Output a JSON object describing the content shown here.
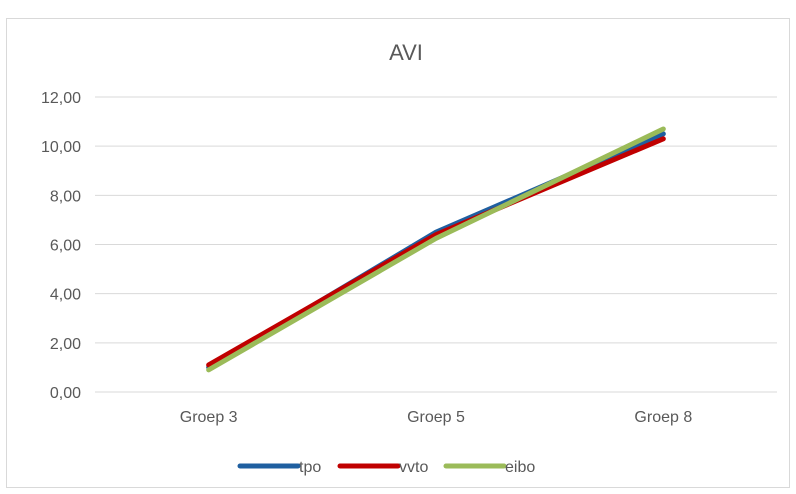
{
  "chart_data": {
    "type": "line",
    "title": "AVI",
    "xlabel": "",
    "ylabel": "",
    "categories": [
      "Groep 3",
      "Groep 5",
      "Groep 8"
    ],
    "ylim": [
      0,
      12
    ],
    "y_ticks": [
      "0,00",
      "2,00",
      "4,00",
      "6,00",
      "8,00",
      "10,00",
      "12,00"
    ],
    "grid": true,
    "legend_position": "bottom",
    "series": [
      {
        "name": "tpo",
        "color": "#1f5fa0",
        "values": [
          1.0,
          6.5,
          10.5
        ]
      },
      {
        "name": "vvto",
        "color": "#c00000",
        "values": [
          1.1,
          6.4,
          10.3
        ]
      },
      {
        "name": "eibo",
        "color": "#9bbb59",
        "values": [
          0.9,
          6.25,
          10.7
        ]
      }
    ]
  }
}
